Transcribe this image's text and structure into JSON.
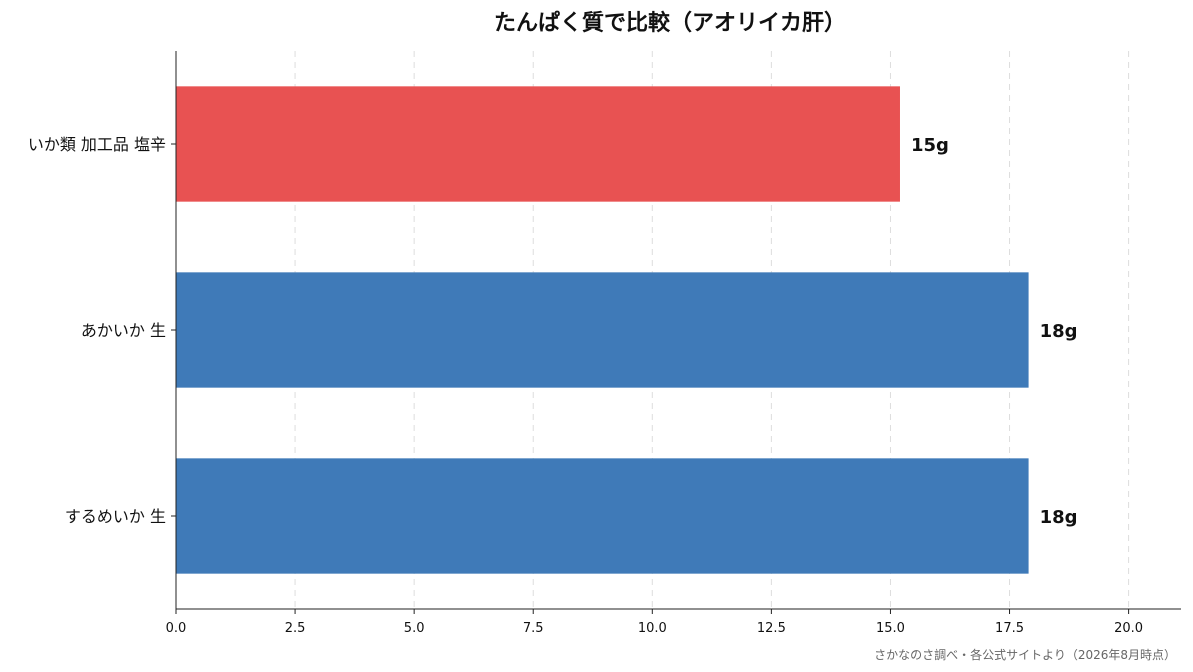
{
  "chart_data": {
    "type": "bar",
    "orientation": "horizontal",
    "title": "たんぱく質で比較（アオリイカ肝）",
    "xlabel": "",
    "ylabel": "",
    "categories": [
      "いか類 加工品 塩辛",
      "あかいか 生",
      "するめいか 生"
    ],
    "values": [
      15.2,
      17.9,
      17.9
    ],
    "data_labels": [
      "15g",
      "18g",
      "18g"
    ],
    "colors": [
      "#e85252",
      "#3f7ab8",
      "#3f7ab8"
    ],
    "xlim": [
      0,
      21.1
    ],
    "x_ticks": [
      0,
      2.5,
      5,
      7.5,
      10,
      12.5,
      15,
      17.5,
      20
    ],
    "x_tick_labels": [
      "0.0",
      "2.5",
      "5.0",
      "7.5",
      "10.0",
      "12.5",
      "15.0",
      "17.5",
      "20.0"
    ],
    "grid": "vertical-dashed",
    "legend": "none"
  },
  "source_note": "さかなのさ調べ・各公式サイトより（2026年8月時点）"
}
